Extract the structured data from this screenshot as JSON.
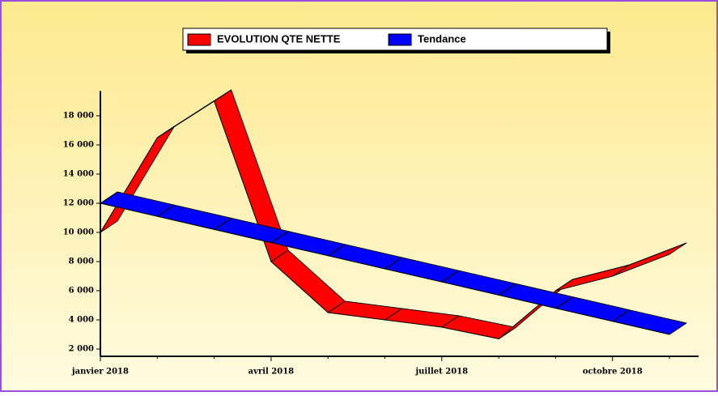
{
  "chart_data": {
    "type": "ribbon",
    "categories": [
      "janvier 2018",
      null,
      null,
      "avril 2018",
      null,
      null,
      "juillet 2018",
      null,
      null,
      "octobre 2018",
      null
    ],
    "series": [
      {
        "name": "EVOLUTION QTE NETTE",
        "color": "#ff0000",
        "values": [
          10000,
          16500,
          19000,
          8000,
          4500,
          4000,
          3500,
          2700,
          6000,
          7000,
          8500
        ]
      },
      {
        "name": "Tendance",
        "color": "#0000ff",
        "values": [
          12000,
          11100,
          10200,
          9300,
          8400,
          7500,
          6600,
          5700,
          4800,
          3900,
          3000
        ]
      }
    ],
    "ylim": [
      1500,
      19700
    ],
    "yticks": [
      {
        "value": 2000,
        "label": "2 000"
      },
      {
        "value": 4000,
        "label": "4 000"
      },
      {
        "value": 6000,
        "label": "6 000"
      },
      {
        "value": 8000,
        "label": "8 000"
      },
      {
        "value": 10000,
        "label": "10 000"
      },
      {
        "value": 12000,
        "label": "12 000"
      },
      {
        "value": 14000,
        "label": "14 000"
      },
      {
        "value": 16000,
        "label": "16 000"
      },
      {
        "value": 18000,
        "label": "18 000"
      }
    ],
    "legend": "top"
  }
}
